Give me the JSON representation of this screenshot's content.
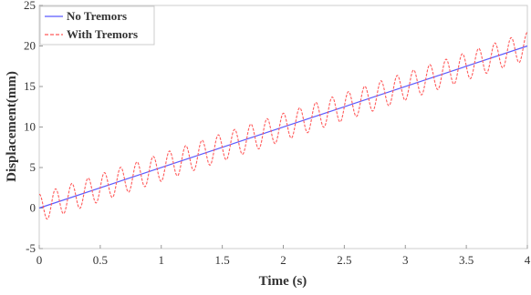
{
  "chart_data": {
    "type": "line",
    "title": "",
    "xlabel": "Time (s)",
    "ylabel": "Displacement(mm)",
    "xlim": [
      0,
      4
    ],
    "ylim": [
      -5,
      25
    ],
    "x_ticks": [
      0,
      0.5,
      1,
      1.5,
      2,
      2.5,
      3,
      3.5,
      4
    ],
    "x_tick_labels": [
      "0",
      "0.5",
      "1",
      "1.5",
      "2",
      "2.5",
      "3",
      "3.5",
      "4"
    ],
    "y_ticks": [
      -5,
      0,
      5,
      10,
      15,
      20,
      25
    ],
    "y_tick_labels": [
      "-5",
      "0",
      "5",
      "10",
      "15",
      "20",
      "25"
    ],
    "grid": false,
    "legend_position": "top-left",
    "series": [
      {
        "name": "No Tremors",
        "color": "#5b5bff",
        "style": "solid",
        "x": [
          0,
          4
        ],
        "y": [
          0,
          20
        ]
      },
      {
        "name": "With Tremors",
        "color": "#ff5b5b",
        "style": "dashed",
        "model": "linear trend plus sinusoidal tremor",
        "slope_mm_per_s": 5,
        "amplitude_mm": 1.7,
        "frequency_hz": 7.5,
        "x_range": [
          0,
          4
        ]
      }
    ]
  }
}
